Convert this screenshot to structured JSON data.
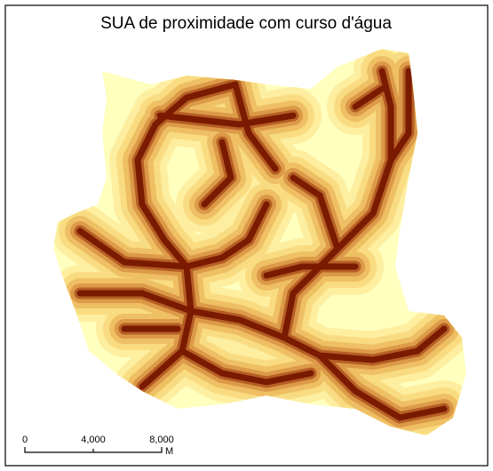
{
  "title": "SUA de proximidade com curso d'água",
  "scale_bar": {
    "ticks": [
      "0",
      "4,000",
      "8,000"
    ],
    "unit": "M"
  }
}
